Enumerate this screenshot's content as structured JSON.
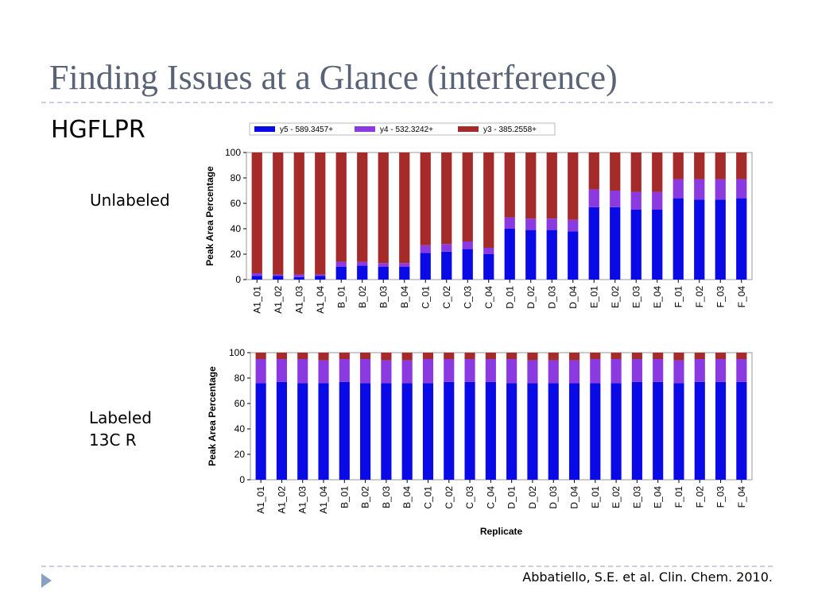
{
  "slide": {
    "title": "Finding Issues at a Glance (interference)",
    "subtitle": "HGFLPR",
    "label_top": "Unlabeled",
    "label_bottom_line1": "Labeled",
    "label_bottom_line2": "13C R",
    "citation": "Abbatiello, S.E. et al. Clin. Chem. 2010."
  },
  "colors": {
    "y5": "#0a0ae6",
    "y4": "#8a3ae0",
    "y3": "#a52a2a"
  },
  "chart_data": [
    {
      "type": "bar",
      "stacked": true,
      "title": "",
      "ylabel": "Peak Area Percentage",
      "xlabel": "",
      "ylim": [
        0,
        100
      ],
      "yticks": [
        0,
        20,
        40,
        60,
        80,
        100
      ],
      "legend": {
        "placement": "top",
        "entries": [
          "y5 - 589.3457+",
          "y4 - 532.3242+",
          "y3 - 385.2558+"
        ]
      },
      "categories": [
        "A1_01",
        "A1_02",
        "A1_03",
        "A1_04",
        "B_01",
        "B_02",
        "B_03",
        "B_04",
        "C_01",
        "C_02",
        "C_03",
        "C_04",
        "D_01",
        "D_02",
        "D_03",
        "D_04",
        "E_01",
        "E_02",
        "E_03",
        "E_04",
        "F_01",
        "F_02",
        "F_03",
        "F_04"
      ],
      "series": [
        {
          "name": "y5 - 589.3457+",
          "values": [
            3,
            3,
            2,
            3,
            10,
            11,
            10,
            10,
            21,
            22,
            24,
            20,
            40,
            39,
            39,
            38,
            57,
            57,
            55,
            55,
            64,
            63,
            63,
            64
          ]
        },
        {
          "name": "y4 - 532.3242+",
          "values": [
            2,
            1,
            2,
            1,
            4,
            3,
            3,
            3,
            6,
            6,
            6,
            5,
            9,
            9,
            9,
            9,
            14,
            13,
            14,
            14,
            15,
            16,
            16,
            15
          ]
        },
        {
          "name": "y3 - 385.2558+",
          "values": [
            95,
            96,
            96,
            96,
            86,
            86,
            87,
            87,
            73,
            72,
            70,
            75,
            51,
            52,
            52,
            53,
            29,
            30,
            31,
            31,
            21,
            21,
            21,
            21
          ]
        }
      ]
    },
    {
      "type": "bar",
      "stacked": true,
      "title": "",
      "ylabel": "Peak Area Percentage",
      "xlabel": "Replicate",
      "ylim": [
        0,
        100
      ],
      "yticks": [
        0,
        20,
        40,
        60,
        80,
        100
      ],
      "categories": [
        "A1_01",
        "A1_02",
        "A1_03",
        "A1_04",
        "B_01",
        "B_02",
        "B_03",
        "B_04",
        "C_01",
        "C_02",
        "C_03",
        "C_04",
        "D_01",
        "D_02",
        "D_03",
        "D_04",
        "E_01",
        "E_02",
        "E_03",
        "E_04",
        "F_01",
        "F_02",
        "F_03",
        "F_04"
      ],
      "series": [
        {
          "name": "y5 - 589.3457+",
          "values": [
            76,
            77,
            76,
            76,
            77,
            76,
            76,
            76,
            76,
            77,
            77,
            77,
            76,
            76,
            76,
            76,
            76,
            76,
            77,
            77,
            76,
            77,
            77,
            77
          ]
        },
        {
          "name": "y4 - 532.3242+",
          "values": [
            19,
            18,
            19,
            18,
            18,
            19,
            18,
            18,
            19,
            18,
            18,
            18,
            19,
            18,
            18,
            18,
            19,
            19,
            18,
            18,
            18,
            18,
            18,
            18
          ]
        },
        {
          "name": "y3 - 385.2558+",
          "values": [
            5,
            5,
            5,
            6,
            5,
            5,
            6,
            6,
            5,
            5,
            5,
            5,
            5,
            6,
            6,
            6,
            5,
            5,
            5,
            5,
            6,
            5,
            5,
            5
          ]
        }
      ]
    }
  ]
}
